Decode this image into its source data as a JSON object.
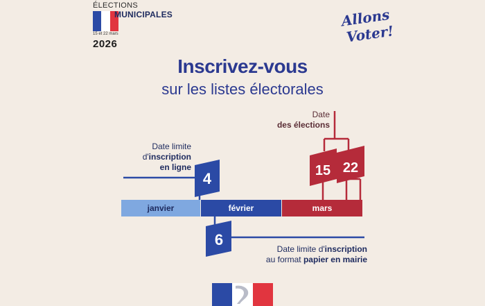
{
  "header": {
    "elections": "ÉLECTIONS",
    "municipales": "MUNICIPALES",
    "dates": "15 et 22 mars",
    "year": "2026"
  },
  "slogan": {
    "line1": "Allons",
    "line2": "Voter!"
  },
  "title": {
    "line1": "Inscrivez-vous",
    "line2": "sur les listes électorales"
  },
  "timeline": {
    "months": [
      "janvier",
      "février",
      "mars"
    ],
    "online_day": "4",
    "paper_day": "6",
    "election_days": [
      "15",
      "22"
    ]
  },
  "labels": {
    "online": {
      "line1": "Date limite",
      "line2_pre": "d'",
      "line2_bold": "inscription",
      "line3": "en ligne"
    },
    "elections": {
      "line1": "Date",
      "line2": "des élections"
    },
    "paper": {
      "line1_pre": "Date limite d'",
      "line1_bold": "inscription",
      "line2_pre": "au format ",
      "line2_bold": "papier en mairie"
    }
  },
  "colors": {
    "blue_dark": "#2b4aa5",
    "blue_light": "#7fa8e0",
    "red": "#b52b3a",
    "navy": "#1d2a5e",
    "background": "#f3ece4"
  }
}
